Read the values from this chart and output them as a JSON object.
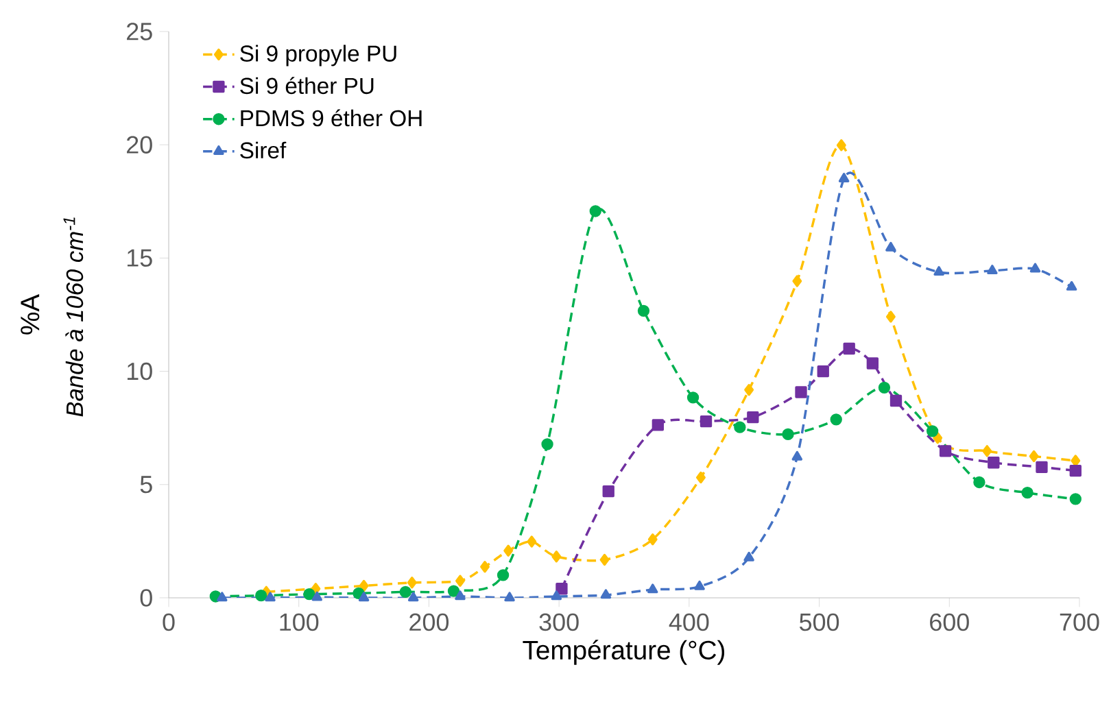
{
  "chart_data": {
    "type": "line",
    "xlabel": "Température (°C)",
    "ylabel": "%A",
    "annotations": [
      "Bande à 1060 cm$^{-1}$"
    ],
    "xlim": [
      0,
      700
    ],
    "xticks": [
      0,
      100,
      200,
      300,
      400,
      500,
      600,
      700
    ],
    "ylim": [
      0,
      25
    ],
    "yticks": [
      0,
      5,
      10,
      15,
      20,
      25
    ],
    "grid": false,
    "legend": "top left",
    "line_style": "dashed",
    "series": [
      {
        "name": "Si  9 propyle PU",
        "color": "#ffc000",
        "marker": "diamond",
        "x": [
          75,
          113,
          150,
          187,
          224,
          243,
          261,
          279,
          298,
          335,
          372,
          409,
          446,
          483,
          517,
          555,
          591,
          629,
          665,
          697
        ],
        "values": [
          0.26,
          0.4,
          0.53,
          0.67,
          0.75,
          1.37,
          2.08,
          2.48,
          1.82,
          1.68,
          2.58,
          5.31,
          9.18,
          13.98,
          19.98,
          12.41,
          7.06,
          6.48,
          6.25,
          6.05
        ]
      },
      {
        "name": "Si 9 éther PU",
        "color": "#7030a0",
        "marker": "square",
        "x": [
          302,
          338,
          376,
          413,
          449,
          486,
          503,
          523,
          541,
          559,
          597,
          634,
          671,
          697
        ],
        "values": [
          0.4,
          4.7,
          7.63,
          7.79,
          7.97,
          9.08,
          10.0,
          11.0,
          10.35,
          8.7,
          6.48,
          5.97,
          5.77,
          5.61
        ]
      },
      {
        "name": "PDMS 9 éther OH",
        "color": "#00b050",
        "marker": "circle",
        "x": [
          36,
          71,
          108,
          146,
          182,
          219,
          257,
          291,
          328,
          365,
          403,
          439,
          476,
          513,
          550,
          587,
          623,
          660,
          697
        ],
        "values": [
          0.06,
          0.1,
          0.16,
          0.2,
          0.26,
          0.3,
          1.0,
          6.78,
          17.07,
          12.67,
          8.84,
          7.53,
          7.22,
          7.87,
          9.28,
          7.36,
          5.1,
          4.64,
          4.36
        ]
      },
      {
        "name": "Siref",
        "color": "#4472c4",
        "marker": "triangle",
        "x": [
          41,
          78,
          114,
          150,
          188,
          224,
          262,
          298,
          336,
          372,
          408,
          446,
          483,
          519,
          555,
          592,
          633,
          666,
          694
        ],
        "values": [
          0,
          0,
          0.02,
          0,
          0,
          0.06,
          0,
          0.06,
          0.12,
          0.36,
          0.5,
          1.77,
          6.22,
          18.5,
          15.45,
          14.38,
          14.44,
          14.52,
          13.72
        ]
      }
    ]
  }
}
